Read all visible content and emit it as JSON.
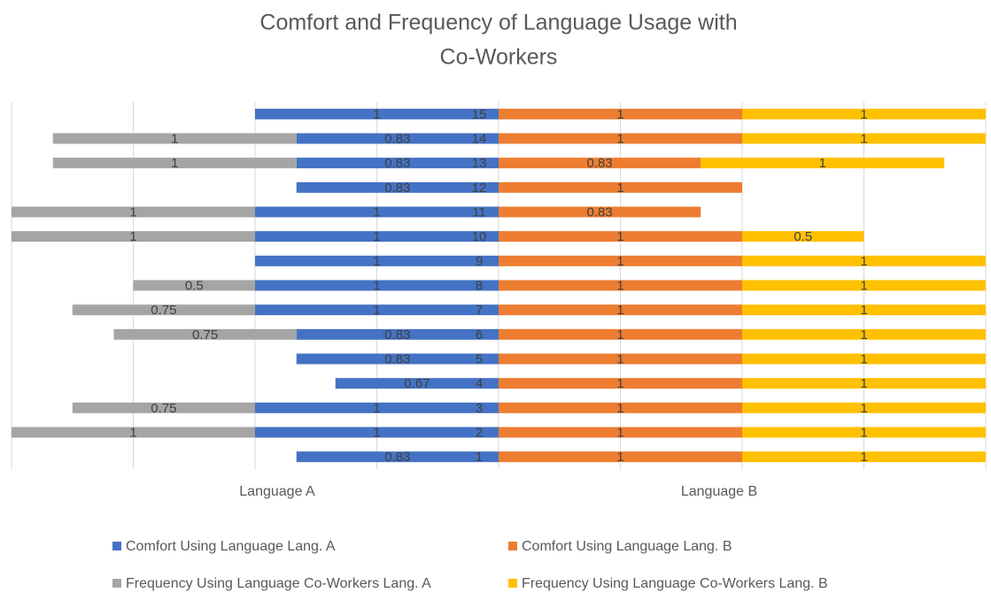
{
  "chart_data": {
    "type": "diverging-bar",
    "title": [
      "Comfort and Frequency of Language Usage with",
      "Co-Workers"
    ],
    "categories": [
      "1",
      "2",
      "3",
      "4",
      "5",
      "6",
      "7",
      "8",
      "9",
      "10",
      "11",
      "12",
      "13",
      "14",
      "15"
    ],
    "side_labels": {
      "left": "Language A",
      "right": "Language B"
    },
    "xlim": [
      -2,
      2
    ],
    "xticks": [
      -2,
      -1.5,
      -1,
      -0.5,
      0,
      0.5,
      1,
      1.5,
      2
    ],
    "tick_labels": false,
    "grid": true,
    "data_labels": true,
    "legend": "bottom",
    "series": [
      {
        "name": "Comfort Using Language Lang. A",
        "color": "#4472c4",
        "side": "left",
        "values": [
          0.83,
          1,
          1,
          0.67,
          0.83,
          0.83,
          1,
          1,
          1,
          1,
          1,
          0.83,
          0.83,
          0.83,
          1
        ]
      },
      {
        "name": "Comfort Using Language Lang. B",
        "color": "#ed7d31",
        "side": "right",
        "values": [
          1,
          1,
          1,
          1,
          1,
          1,
          1,
          1,
          1,
          1,
          0.83,
          1,
          0.83,
          1,
          1
        ]
      },
      {
        "name": "Frequency Using Language Co-Workers Lang. A",
        "color": "#a5a5a5",
        "side": "left",
        "values": [
          null,
          1,
          0.75,
          null,
          null,
          0.75,
          0.75,
          0.5,
          null,
          1,
          1,
          null,
          1,
          1,
          null
        ]
      },
      {
        "name": "Frequency Using Language Co-Workers Lang. B",
        "color": "#ffc000",
        "side": "right",
        "values": [
          1,
          1,
          1,
          1,
          1,
          1,
          1,
          1,
          1,
          0.5,
          null,
          null,
          1,
          1,
          1
        ]
      }
    ]
  }
}
